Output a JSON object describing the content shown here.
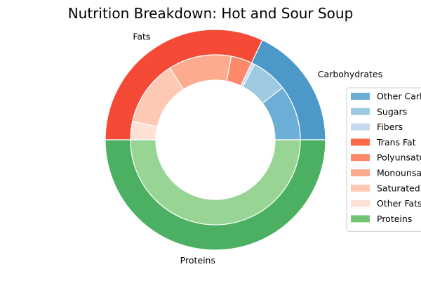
{
  "chart_data": {
    "type": "pie",
    "variant": "nested-donut",
    "title": "Nutrition Breakdown:  Hot and Sour Soup",
    "outer_ring": [
      {
        "label": "Carbohydrates",
        "value": 18,
        "color": "#4b98c9"
      },
      {
        "label": "Fats",
        "value": 32,
        "color": "#f44a36"
      },
      {
        "label": "Proteins",
        "value": 50,
        "color": "#4bb062"
      }
    ],
    "inner_ring": [
      {
        "label": "Other Carbohydrates",
        "group": "Carbohydrates",
        "value": 10.5,
        "color": "#6baed6"
      },
      {
        "label": "Sugars",
        "group": "Carbohydrates",
        "value": 6.9,
        "color": "#9ecae1"
      },
      {
        "label": "Fibers",
        "group": "Carbohydrates",
        "value": 0.6,
        "color": "#c6dbef"
      },
      {
        "label": "Trans Fat",
        "group": "Fats",
        "value": 0,
        "color": "#fb6a4a"
      },
      {
        "label": "Polyunsaturated Fat",
        "group": "Fats",
        "value": 4,
        "color": "#fc8a6a"
      },
      {
        "label": "Monounsaturated Fat",
        "group": "Fats",
        "value": 12,
        "color": "#fcab8f"
      },
      {
        "label": "Saturated Fat",
        "group": "Fats",
        "value": 12.5,
        "color": "#fdc9b4"
      },
      {
        "label": "Other Fats",
        "group": "Fats",
        "value": 3.5,
        "color": "#fee1d4"
      },
      {
        "label": "Proteins",
        "group": "Proteins",
        "value": 50,
        "color": "#98d594"
      }
    ],
    "legend": {
      "placement": "right",
      "entries": [
        {
          "label": "Other Carbohydrates",
          "color": "#6baed6"
        },
        {
          "label": "Sugars",
          "color": "#9ecae1"
        },
        {
          "label": "Fibers",
          "color": "#c6dbef"
        },
        {
          "label": "Trans Fat",
          "color": "#fb6a4a"
        },
        {
          "label": "Polyunsaturated Fat",
          "color": "#fc8a6a"
        },
        {
          "label": "Monounsaturated Fat",
          "color": "#fcab8f"
        },
        {
          "label": "Saturated Fat",
          "color": "#fdc9b4"
        },
        {
          "label": "Other Fats",
          "color": "#fee1d4"
        },
        {
          "label": "Proteins",
          "color": "#74c476"
        }
      ]
    }
  }
}
